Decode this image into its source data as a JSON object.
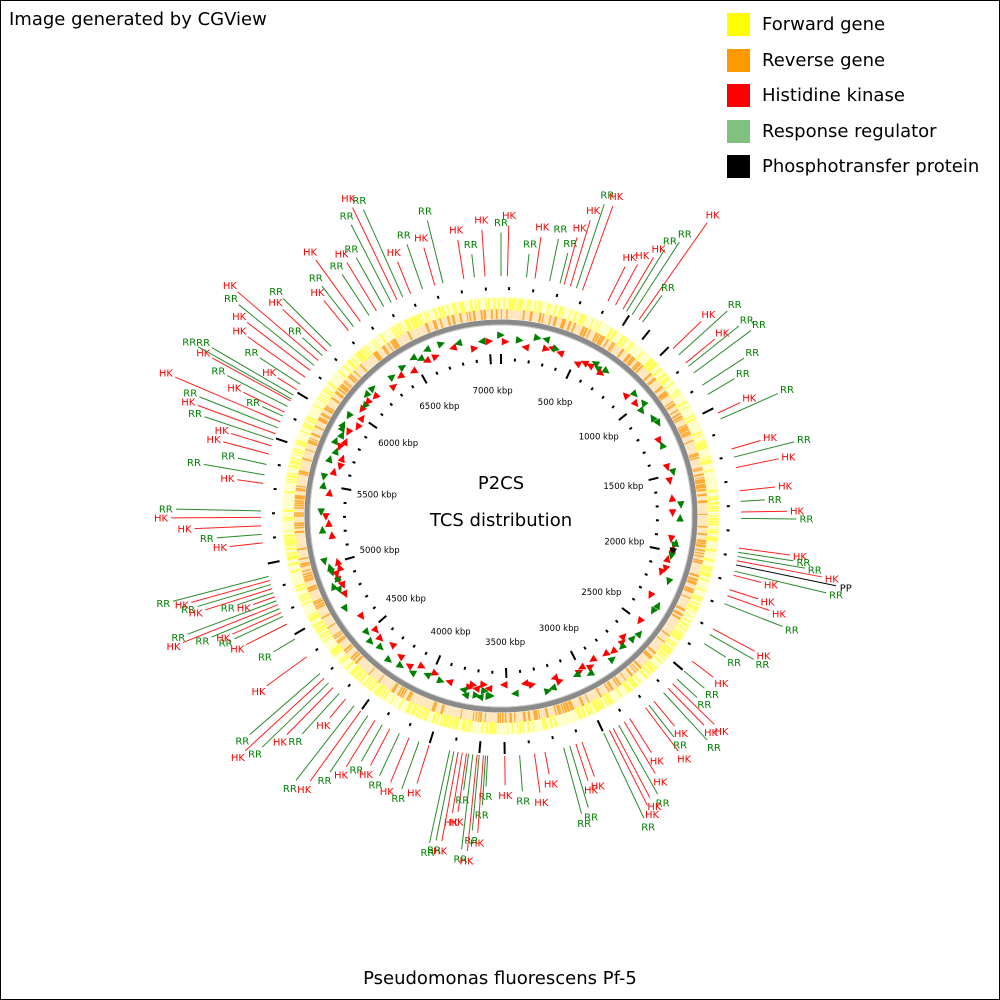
{
  "credit": "Image generated by CGView",
  "title": "P2CS",
  "subtitle": "TCS distribution",
  "caption": "Pseudomonas fluorescens Pf-5",
  "legend": [
    {
      "label": "Forward gene",
      "color": "#ffff00"
    },
    {
      "label": "Reverse gene",
      "color": "#ff9900"
    },
    {
      "label": "Histidine kinase",
      "color": "#ff0000"
    },
    {
      "label": "Response regulator",
      "color": "#80c080"
    },
    {
      "label": "Phosphotransfer protein",
      "color": "#000000"
    }
  ],
  "colors": {
    "forward": "#ffff55",
    "reverse": "#ffaa33",
    "backbone": "#8a8a8a",
    "hk": "#ff0000",
    "rr": "#008000",
    "pp": "#000000",
    "hk_line": "#ff2020",
    "rr_line": "#2a8a2a"
  },
  "genome": {
    "length_kbp": 7075,
    "tick_labels": [
      "500 kbp",
      "1000 kbp",
      "1500 kbp",
      "2000 kbp",
      "2500 kbp",
      "3000 kbp",
      "3500 kbp",
      "4000 kbp",
      "4500 kbp",
      "5000 kbp",
      "5500 kbp",
      "6000 kbp",
      "6500 kbp",
      "7000 kbp"
    ],
    "tick_positions_kbp": [
      500,
      1000,
      1500,
      2000,
      2500,
      3000,
      3500,
      4000,
      4500,
      5000,
      5500,
      6000,
      6500,
      7000
    ]
  },
  "features": [
    {
      "type": "RR",
      "pos_kbp": 0
    },
    {
      "type": "HK",
      "pos_kbp": 30
    },
    {
      "type": "RR",
      "pos_kbp": 120
    },
    {
      "type": "HK",
      "pos_kbp": 160
    },
    {
      "type": "RR",
      "pos_kbp": 230
    },
    {
      "type": "RR",
      "pos_kbp": 280
    },
    {
      "type": "HK",
      "pos_kbp": 300
    },
    {
      "type": "HK",
      "pos_kbp": 330
    },
    {
      "type": "RR",
      "pos_kbp": 360
    },
    {
      "type": "HK",
      "pos_kbp": 390
    },
    {
      "type": "HK",
      "pos_kbp": 520
    },
    {
      "type": "HK",
      "pos_kbp": 560
    },
    {
      "type": "HK",
      "pos_kbp": 600
    },
    {
      "type": "RR",
      "pos_kbp": 620
    },
    {
      "type": "RR",
      "pos_kbp": 650
    },
    {
      "type": "HK",
      "pos_kbp": 690
    },
    {
      "type": "RR",
      "pos_kbp": 710
    },
    {
      "type": "HK",
      "pos_kbp": 900
    },
    {
      "type": "RR",
      "pos_kbp": 940
    },
    {
      "type": "HK",
      "pos_kbp": 990
    },
    {
      "type": "RR",
      "pos_kbp": 1010
    },
    {
      "type": "RR",
      "pos_kbp": 1050
    },
    {
      "type": "RR",
      "pos_kbp": 1120
    },
    {
      "type": "RR",
      "pos_kbp": 1170
    },
    {
      "type": "HK",
      "pos_kbp": 1270
    },
    {
      "type": "RR",
      "pos_kbp": 1300
    },
    {
      "type": "HK",
      "pos_kbp": 1450
    },
    {
      "type": "RR",
      "pos_kbp": 1490
    },
    {
      "type": "HK",
      "pos_kbp": 1540
    },
    {
      "type": "HK",
      "pos_kbp": 1650
    },
    {
      "type": "RR",
      "pos_kbp": 1700
    },
    {
      "type": "HK",
      "pos_kbp": 1750
    },
    {
      "type": "RR",
      "pos_kbp": 1780
    },
    {
      "type": "HK",
      "pos_kbp": 1920
    },
    {
      "type": "RR",
      "pos_kbp": 1940
    },
    {
      "type": "RR",
      "pos_kbp": 1960
    },
    {
      "type": "HK",
      "pos_kbp": 1980
    },
    {
      "type": "PP",
      "pos_kbp": 2000
    },
    {
      "type": "RR",
      "pos_kbp": 2030
    },
    {
      "type": "HK",
      "pos_kbp": 2050
    },
    {
      "type": "HK",
      "pos_kbp": 2120
    },
    {
      "type": "HK",
      "pos_kbp": 2150
    },
    {
      "type": "RR",
      "pos_kbp": 2190
    },
    {
      "type": "HK",
      "pos_kbp": 2320
    },
    {
      "type": "RR",
      "pos_kbp": 2350
    },
    {
      "type": "RR",
      "pos_kbp": 2400
    },
    {
      "type": "HK",
      "pos_kbp": 2500
    },
    {
      "type": "RR",
      "pos_kbp": 2560
    },
    {
      "type": "RR",
      "pos_kbp": 2610
    },
    {
      "type": "HK",
      "pos_kbp": 2640
    },
    {
      "type": "HK",
      "pos_kbp": 2670
    },
    {
      "type": "RR",
      "pos_kbp": 2700
    },
    {
      "type": "HK",
      "pos_kbp": 2760
    },
    {
      "type": "RR",
      "pos_kbp": 2790
    },
    {
      "type": "HK",
      "pos_kbp": 2810
    },
    {
      "type": "HK",
      "pos_kbp": 2900
    },
    {
      "type": "HK",
      "pos_kbp": 2930
    },
    {
      "type": "RR",
      "pos_kbp": 2960
    },
    {
      "type": "HK",
      "pos_kbp": 2990
    },
    {
      "type": "HK",
      "pos_kbp": 3010
    },
    {
      "type": "RR",
      "pos_kbp": 3040
    },
    {
      "type": "HK",
      "pos_kbp": 3150
    },
    {
      "type": "HK",
      "pos_kbp": 3180
    },
    {
      "type": "RR",
      "pos_kbp": 3210
    },
    {
      "type": "RR",
      "pos_kbp": 3240
    },
    {
      "type": "HK",
      "pos_kbp": 3330
    },
    {
      "type": "HK",
      "pos_kbp": 3380
    },
    {
      "type": "RR",
      "pos_kbp": 3450
    },
    {
      "type": "HK",
      "pos_kbp": 3520
    },
    {
      "type": "RR",
      "pos_kbp": 3600
    },
    {
      "type": "RR",
      "pos_kbp": 3610
    },
    {
      "type": "HK",
      "pos_kbp": 3620
    },
    {
      "type": "RR",
      "pos_kbp": 3640
    },
    {
      "type": "HK",
      "pos_kbp": 3650
    },
    {
      "type": "RR",
      "pos_kbp": 3670
    },
    {
      "type": "RR",
      "pos_kbp": 3690
    },
    {
      "type": "HK",
      "pos_kbp": 3700
    },
    {
      "type": "HK",
      "pos_kbp": 3720
    },
    {
      "type": "HK",
      "pos_kbp": 3740
    },
    {
      "type": "RR",
      "pos_kbp": 3760
    },
    {
      "type": "RR",
      "pos_kbp": 3780
    },
    {
      "type": "HK",
      "pos_kbp": 3880
    },
    {
      "type": "RR",
      "pos_kbp": 3930
    },
    {
      "type": "HK",
      "pos_kbp": 3980
    },
    {
      "type": "RR",
      "pos_kbp": 4030
    },
    {
      "type": "HK",
      "pos_kbp": 4080
    },
    {
      "type": "RR",
      "pos_kbp": 4120
    },
    {
      "type": "HK",
      "pos_kbp": 4160
    },
    {
      "type": "RR",
      "pos_kbp": 4200
    },
    {
      "type": "HK",
      "pos_kbp": 4240
    },
    {
      "type": "RR",
      "pos_kbp": 4280
    },
    {
      "type": "HK",
      "pos_kbp": 4330
    },
    {
      "type": "RR",
      "pos_kbp": 4370
    },
    {
      "type": "HK",
      "pos_kbp": 4410
    },
    {
      "type": "RR",
      "pos_kbp": 4440
    },
    {
      "type": "HK",
      "pos_kbp": 4470
    },
    {
      "type": "RR",
      "pos_kbp": 4500
    },
    {
      "type": "HK",
      "pos_kbp": 4600
    },
    {
      "type": "RR",
      "pos_kbp": 4700
    },
    {
      "type": "HK",
      "pos_kbp": 4780
    },
    {
      "type": "RR",
      "pos_kbp": 4820
    },
    {
      "type": "HK",
      "pos_kbp": 4840
    },
    {
      "type": "RR",
      "pos_kbp": 4860
    },
    {
      "type": "HK",
      "pos_kbp": 4880
    },
    {
      "type": "RR",
      "pos_kbp": 4900
    },
    {
      "type": "HK",
      "pos_kbp": 4920
    },
    {
      "type": "RR",
      "pos_kbp": 4940
    },
    {
      "type": "HK",
      "pos_kbp": 4960
    },
    {
      "type": "RR",
      "pos_kbp": 4980
    },
    {
      "type": "HK",
      "pos_kbp": 5000
    },
    {
      "type": "RR",
      "pos_kbp": 5020
    },
    {
      "type": "HK",
      "pos_kbp": 5180
    },
    {
      "type": "RR",
      "pos_kbp": 5220
    },
    {
      "type": "HK",
      "pos_kbp": 5260
    },
    {
      "type": "HK",
      "pos_kbp": 5300
    },
    {
      "type": "RR",
      "pos_kbp": 5330
    },
    {
      "type": "HK",
      "pos_kbp": 5460
    },
    {
      "type": "RR",
      "pos_kbp": 5500
    },
    {
      "type": "RR",
      "pos_kbp": 5550
    },
    {
      "type": "HK",
      "pos_kbp": 5600
    },
    {
      "type": "HK",
      "pos_kbp": 5640
    },
    {
      "type": "RR",
      "pos_kbp": 5670
    },
    {
      "type": "HK",
      "pos_kbp": 5700
    },
    {
      "type": "RR",
      "pos_kbp": 5730
    },
    {
      "type": "HK",
      "pos_kbp": 5760
    },
    {
      "type": "RR",
      "pos_kbp": 5790
    },
    {
      "type": "HK",
      "pos_kbp": 5810
    },
    {
      "type": "RR",
      "pos_kbp": 5840
    },
    {
      "type": "HK",
      "pos_kbp": 5870
    },
    {
      "type": "RR",
      "pos_kbp": 5880
    },
    {
      "type": "RR",
      "pos_kbp": 5900
    },
    {
      "type": "HK",
      "pos_kbp": 5930
    },
    {
      "type": "RR",
      "pos_kbp": 5960
    },
    {
      "type": "HK",
      "pos_kbp": 6000
    },
    {
      "type": "HK",
      "pos_kbp": 6040
    },
    {
      "type": "RR",
      "pos_kbp": 6070
    },
    {
      "type": "HK",
      "pos_kbp": 6100
    },
    {
      "type": "RR",
      "pos_kbp": 6130
    },
    {
      "type": "HK",
      "pos_kbp": 6160
    },
    {
      "type": "RR",
      "pos_kbp": 6190
    },
    {
      "type": "HK",
      "pos_kbp": 6300
    },
    {
      "type": "RR",
      "pos_kbp": 6330
    },
    {
      "type": "HK",
      "pos_kbp": 6370
    },
    {
      "type": "RR",
      "pos_kbp": 6420
    },
    {
      "type": "HK",
      "pos_kbp": 6460
    },
    {
      "type": "RR",
      "pos_kbp": 6500
    },
    {
      "type": "RR",
      "pos_kbp": 6540
    },
    {
      "type": "HK",
      "pos_kbp": 6570
    },
    {
      "type": "RR",
      "pos_kbp": 6600
    },
    {
      "type": "HK",
      "pos_kbp": 6640
    },
    {
      "type": "RR",
      "pos_kbp": 6700
    },
    {
      "type": "HK",
      "pos_kbp": 6760
    },
    {
      "type": "RR",
      "pos_kbp": 6800
    },
    {
      "type": "HK",
      "pos_kbp": 6900
    },
    {
      "type": "RR",
      "pos_kbp": 6950
    },
    {
      "type": "HK",
      "pos_kbp": 7000
    }
  ]
}
